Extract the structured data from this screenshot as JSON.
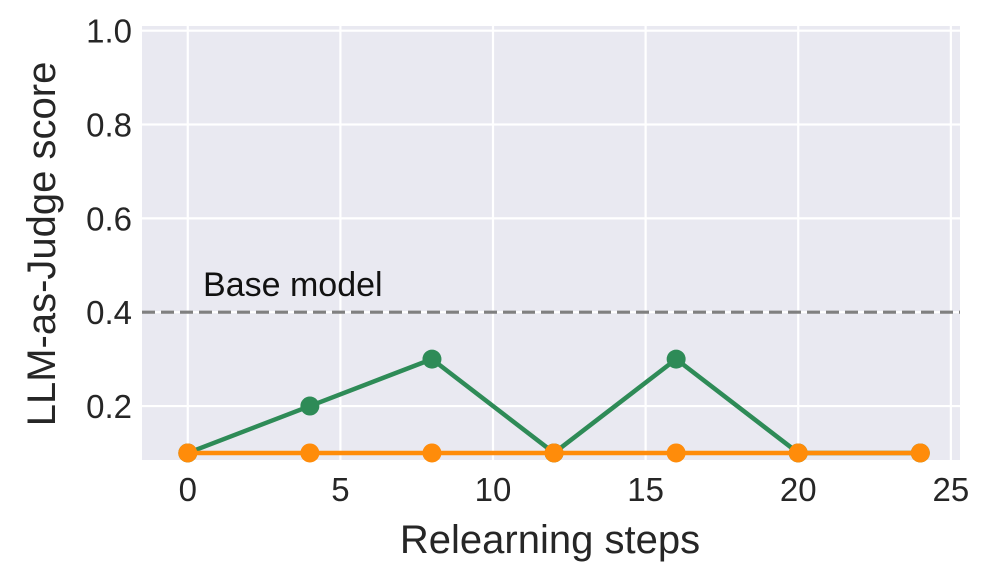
{
  "chart_data": {
    "type": "line",
    "title": "",
    "xlabel": "Relearning steps",
    "ylabel": "LLM-as-Judge score",
    "xlim": [
      -1.5,
      25.3
    ],
    "ylim": [
      0.085,
      1.01
    ],
    "xticks": [
      0,
      5,
      10,
      15,
      20,
      25
    ],
    "xtick_labels": [
      "0",
      "5",
      "10",
      "15",
      "20",
      "25"
    ],
    "yticks": [
      0.2,
      0.4,
      0.6,
      0.8,
      1.0
    ],
    "ytick_labels": [
      "0.2",
      "0.4",
      "0.6",
      "0.8",
      "1.0"
    ],
    "grid": true,
    "legend": "none",
    "series": [
      {
        "color": "#2e8b57",
        "x": [
          0,
          4,
          8,
          12,
          16,
          20,
          24
        ],
        "y": [
          0.1,
          0.2,
          0.3,
          0.1,
          0.3,
          0.1,
          0.1
        ]
      },
      {
        "color": "#ff8c0a",
        "x": [
          0,
          4,
          8,
          12,
          16,
          20,
          24
        ],
        "y": [
          0.1,
          0.1,
          0.1,
          0.1,
          0.1,
          0.1,
          0.1
        ]
      }
    ],
    "reference_line": {
      "y": 0.4,
      "label": "Base model",
      "label_x": 0.5,
      "color": "#808080",
      "style": "dashed"
    }
  },
  "colors": {
    "plot_background": "#e9e9f1",
    "grid": "#ffffff"
  }
}
